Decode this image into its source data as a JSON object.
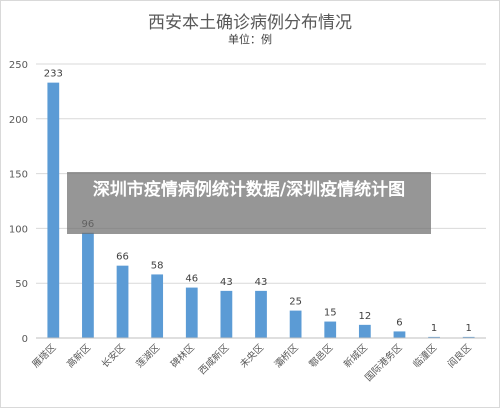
{
  "chart_data": {
    "type": "bar",
    "title": "西安本土确诊病例分布情况",
    "subtitle": "单位：例",
    "categories": [
      "雁塔区",
      "高新区",
      "长安区",
      "莲湖区",
      "碑林区",
      "西咸新区",
      "未央区",
      "灞桥区",
      "鄠邑区",
      "新城区",
      "国际港务区",
      "临潼区",
      "阎良区"
    ],
    "values": [
      233,
      96,
      66,
      58,
      46,
      43,
      43,
      25,
      15,
      12,
      6,
      1,
      1
    ],
    "ylim": [
      0,
      250
    ],
    "yticks": [
      0,
      50,
      100,
      150,
      200,
      250
    ],
    "grid": true,
    "bar_color": "#5b9bd5"
  },
  "overlay": {
    "text": "深圳市疫情病例统计数据/深圳疫情统计图"
  }
}
